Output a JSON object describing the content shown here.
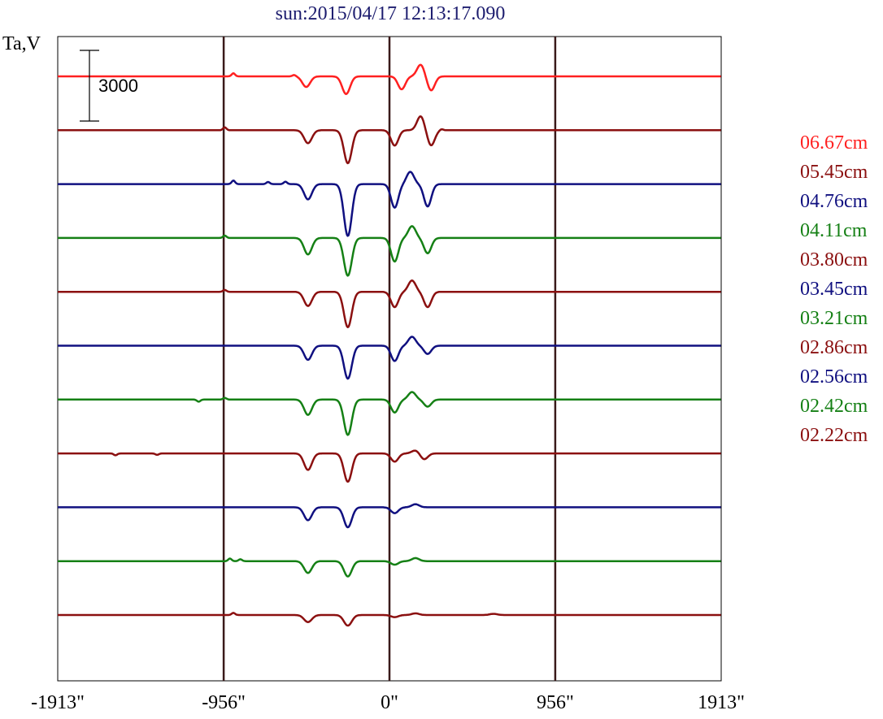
{
  "page": {
    "title": "sun:2015/04/17 12:13:17.090",
    "title_color": "#1c1c6e"
  },
  "chart_data": {
    "type": "line",
    "title": "sun:2015/04/17 12:13:17.090",
    "ylabel": "Ta,V",
    "scale_bar": {
      "label": "3000",
      "value": 3000
    },
    "xlim": [
      -1913,
      1913
    ],
    "x_ticks": [
      "-1913\"",
      "-956\"",
      "0\"",
      "956\"",
      "1913\""
    ],
    "x_tick_values": [
      -1913,
      -956,
      0,
      956,
      1913
    ],
    "vlines": [
      -956,
      0,
      956
    ],
    "grid": false,
    "legend_placement": "right",
    "series": [
      {
        "name": "06.67cm",
        "color": "#ff2020",
        "dips": [
          [
            -480,
            -450
          ],
          [
            -250,
            -750
          ],
          [
            70,
            -550
          ],
          [
            180,
            500
          ],
          [
            240,
            -600
          ]
        ],
        "bumps": [
          [
            -900,
            130
          ],
          [
            -550,
            60
          ]
        ]
      },
      {
        "name": "05.45cm",
        "color": "#8b1010",
        "dips": [
          [
            -470,
            -550
          ],
          [
            -240,
            -1400
          ],
          [
            30,
            -650
          ],
          [
            180,
            600
          ],
          [
            240,
            -650
          ]
        ],
        "bumps": [
          [
            -950,
            120
          ],
          [
            300,
            50
          ]
        ]
      },
      {
        "name": "04.76cm",
        "color": "#101080",
        "dips": [
          [
            -470,
            -650
          ],
          [
            -240,
            -2200
          ],
          [
            30,
            -1000
          ],
          [
            120,
            520
          ],
          [
            220,
            -950
          ]
        ],
        "bumps": [
          [
            -900,
            150
          ],
          [
            -700,
            90
          ],
          [
            -600,
            100
          ]
        ]
      },
      {
        "name": "04.11cm",
        "color": "#158015",
        "dips": [
          [
            -470,
            -700
          ],
          [
            -240,
            -1600
          ],
          [
            30,
            -1000
          ],
          [
            130,
            500
          ],
          [
            220,
            -650
          ]
        ],
        "bumps": [
          [
            -950,
            100
          ]
        ]
      },
      {
        "name": "03.80cm",
        "color": "#8b1010",
        "dips": [
          [
            -470,
            -600
          ],
          [
            -240,
            -1500
          ],
          [
            30,
            -650
          ],
          [
            130,
            480
          ],
          [
            220,
            -650
          ]
        ],
        "bumps": [
          [
            -950,
            80
          ]
        ]
      },
      {
        "name": "03.45cm",
        "color": "#101080",
        "dips": [
          [
            -470,
            -600
          ],
          [
            -240,
            -1400
          ],
          [
            30,
            -650
          ],
          [
            130,
            380
          ],
          [
            220,
            -350
          ]
        ],
        "bumps": []
      },
      {
        "name": "03.21cm",
        "color": "#158015",
        "dips": [
          [
            -470,
            -650
          ],
          [
            -240,
            -1500
          ],
          [
            30,
            -550
          ],
          [
            130,
            320
          ],
          [
            220,
            -300
          ]
        ],
        "bumps": [
          [
            -1100,
            -90
          ],
          [
            -950,
            70
          ]
        ]
      },
      {
        "name": "02.86cm",
        "color": "#8b1010",
        "dips": [
          [
            -470,
            -700
          ],
          [
            -240,
            -1200
          ],
          [
            30,
            -350
          ],
          [
            150,
            130
          ],
          [
            200,
            -250
          ]
        ],
        "bumps": [
          [
            -1580,
            -80
          ],
          [
            -1340,
            -60
          ]
        ]
      },
      {
        "name": "02.56cm",
        "color": "#101080",
        "dips": [
          [
            -470,
            -550
          ],
          [
            -240,
            -850
          ],
          [
            30,
            -250
          ],
          [
            150,
            130
          ]
        ],
        "bumps": []
      },
      {
        "name": "02.42cm",
        "color": "#158015",
        "dips": [
          [
            -470,
            -500
          ],
          [
            -240,
            -650
          ],
          [
            30,
            -150
          ],
          [
            150,
            130
          ]
        ],
        "bumps": [
          [
            -920,
            110
          ],
          [
            -860,
            80
          ]
        ]
      },
      {
        "name": "02.22cm",
        "color": "#8b1010",
        "dips": [
          [
            -470,
            -300
          ],
          [
            -240,
            -450
          ],
          [
            30,
            -90
          ],
          [
            150,
            70
          ],
          [
            600,
            50
          ]
        ],
        "bumps": [
          [
            -900,
            90
          ]
        ]
      }
    ]
  }
}
